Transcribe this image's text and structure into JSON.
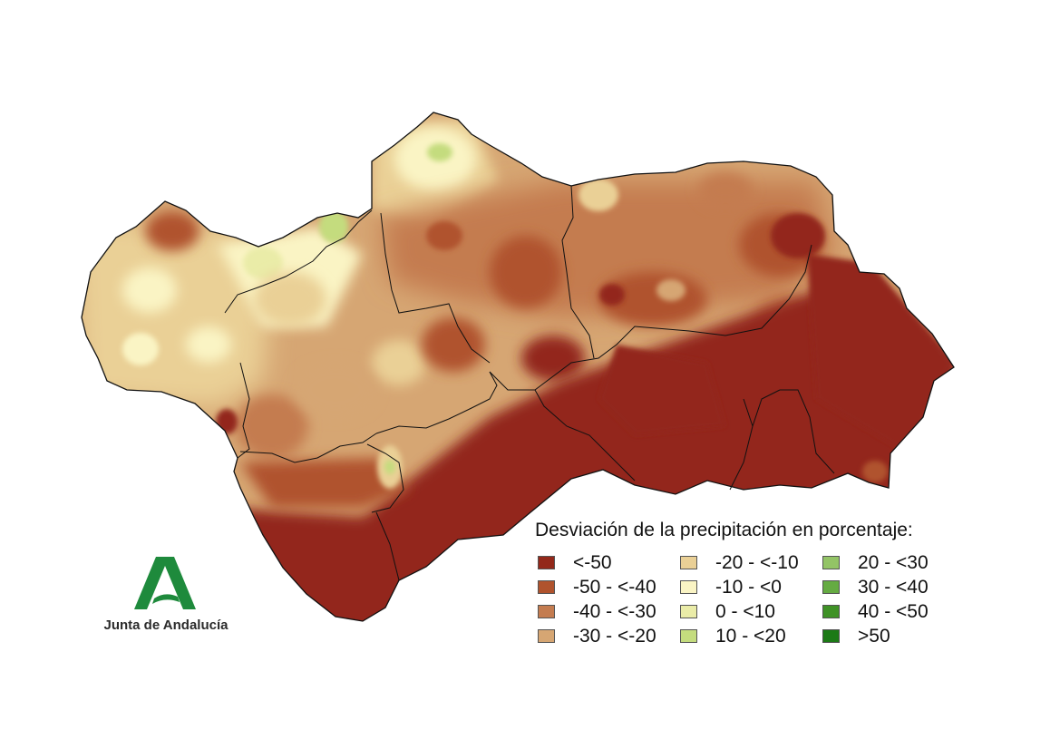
{
  "legend": {
    "title": "Desviación de la precipitación en porcentaje:",
    "classes": [
      {
        "label": "<-50",
        "color": "#93281a"
      },
      {
        "label": "-50 - <-40",
        "color": "#b0532d"
      },
      {
        "label": "-40 - <-30",
        "color": "#c47c50"
      },
      {
        "label": "-30 - <-20",
        "color": "#d6a673"
      },
      {
        "label": "-20 - <-10",
        "color": "#ead096"
      },
      {
        "label": "-10 - <0",
        "color": "#faf4c4"
      },
      {
        "label": "0 - <10",
        "color": "#eaeca8"
      },
      {
        "label": "10 - <20",
        "color": "#c4dc7e"
      },
      {
        "label": "20 - <30",
        "color": "#93c466"
      },
      {
        "label": "30 - <40",
        "color": "#65ab42"
      },
      {
        "label": "40 - <50",
        "color": "#3f9226"
      },
      {
        "label": ">50",
        "color": "#1c7a16"
      }
    ]
  },
  "logo": {
    "text": "Junta de Andalucía",
    "color": "#1e8a3c"
  }
}
